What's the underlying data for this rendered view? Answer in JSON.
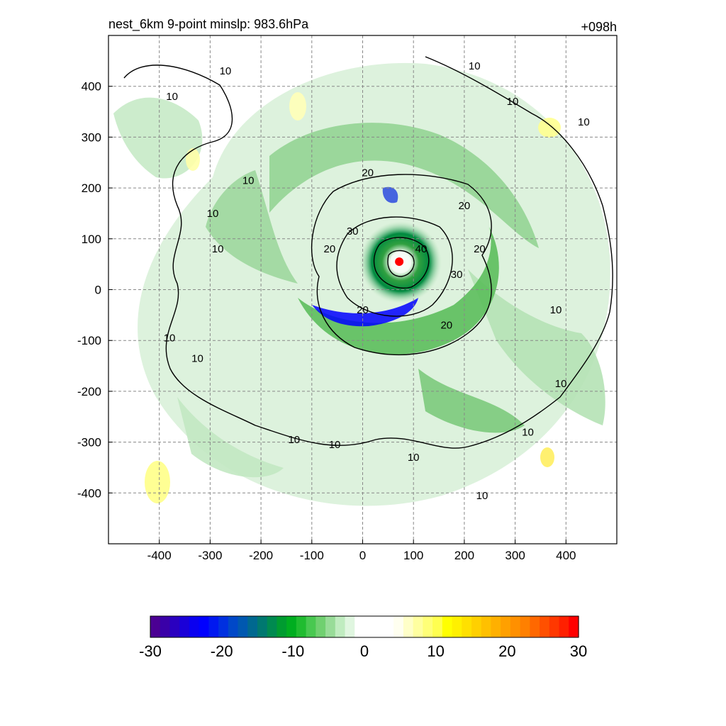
{
  "chart_data": {
    "type": "heatmap",
    "title_left": "nest_6km  9-point minslp: 983.6hPa",
    "title_right": "+098h",
    "xlim": [
      -500,
      500
    ],
    "ylim": [
      -500,
      500
    ],
    "x_ticks": [
      -400,
      -300,
      -200,
      -100,
      0,
      100,
      200,
      300,
      400
    ],
    "y_ticks": [
      400,
      300,
      200,
      100,
      0,
      -100,
      -200,
      -300,
      -400
    ],
    "grid": true,
    "center_marker": {
      "x": 72,
      "y": 55,
      "color": "#ff0000"
    },
    "contour_levels": [
      10,
      20,
      30,
      40
    ],
    "contour_labels": [
      {
        "text": "10",
        "x": -270,
        "y": 430
      },
      {
        "text": "10",
        "x": -375,
        "y": 380
      },
      {
        "text": "10",
        "x": -225,
        "y": 215
      },
      {
        "text": "10",
        "x": -295,
        "y": 150
      },
      {
        "text": "10",
        "x": -285,
        "y": 80
      },
      {
        "text": "10",
        "x": 220,
        "y": 440
      },
      {
        "text": "10",
        "x": 295,
        "y": 370
      },
      {
        "text": "10",
        "x": 435,
        "y": 330
      },
      {
        "text": "20",
        "x": 10,
        "y": 230
      },
      {
        "text": "20",
        "x": 200,
        "y": 165
      },
      {
        "text": "30",
        "x": -20,
        "y": 115
      },
      {
        "text": "40",
        "x": 115,
        "y": 80
      },
      {
        "text": "20",
        "x": -65,
        "y": 80
      },
      {
        "text": "20",
        "x": 230,
        "y": 80
      },
      {
        "text": "30",
        "x": 185,
        "y": 30
      },
      {
        "text": "20",
        "x": 0,
        "y": -40
      },
      {
        "text": "20",
        "x": 165,
        "y": -70
      },
      {
        "text": "10",
        "x": 380,
        "y": -40
      },
      {
        "text": "10",
        "x": -380,
        "y": -95
      },
      {
        "text": "10",
        "x": -325,
        "y": -135
      },
      {
        "text": "10",
        "x": 390,
        "y": -185
      },
      {
        "text": "10",
        "x": -135,
        "y": -295
      },
      {
        "text": "10",
        "x": -55,
        "y": -305
      },
      {
        "text": "10",
        "x": 100,
        "y": -330
      },
      {
        "text": "10",
        "x": 325,
        "y": -280
      },
      {
        "text": "10",
        "x": 235,
        "y": -405
      }
    ],
    "colorbar": {
      "ticks": [
        "-30",
        "-20",
        "-10",
        "0",
        "10",
        "20",
        "30"
      ],
      "range": [
        -30,
        30
      ],
      "colors": [
        "#4b0093",
        "#3a00a8",
        "#2a00c0",
        "#1a00d8",
        "#0a00f0",
        "#0000ff",
        "#0018f0",
        "#0030e0",
        "#0048c8",
        "#0058b0",
        "#006890",
        "#007870",
        "#008a50",
        "#009c30",
        "#00ae20",
        "#20bc30",
        "#48c850",
        "#70d070",
        "#98dc98",
        "#c0ecc0",
        "#e0f6e0",
        "#ffffff",
        "#ffffff",
        "#ffffff",
        "#ffffff",
        "#fffff0",
        "#ffffc8",
        "#ffffa0",
        "#ffff78",
        "#ffff50",
        "#ffff00",
        "#fff000",
        "#ffe000",
        "#ffd000",
        "#ffc000",
        "#ffb000",
        "#ffa000",
        "#ff9000",
        "#ff8000",
        "#ff6800",
        "#ff5000",
        "#ff3800",
        "#ff2000",
        "#ff0000"
      ]
    }
  }
}
